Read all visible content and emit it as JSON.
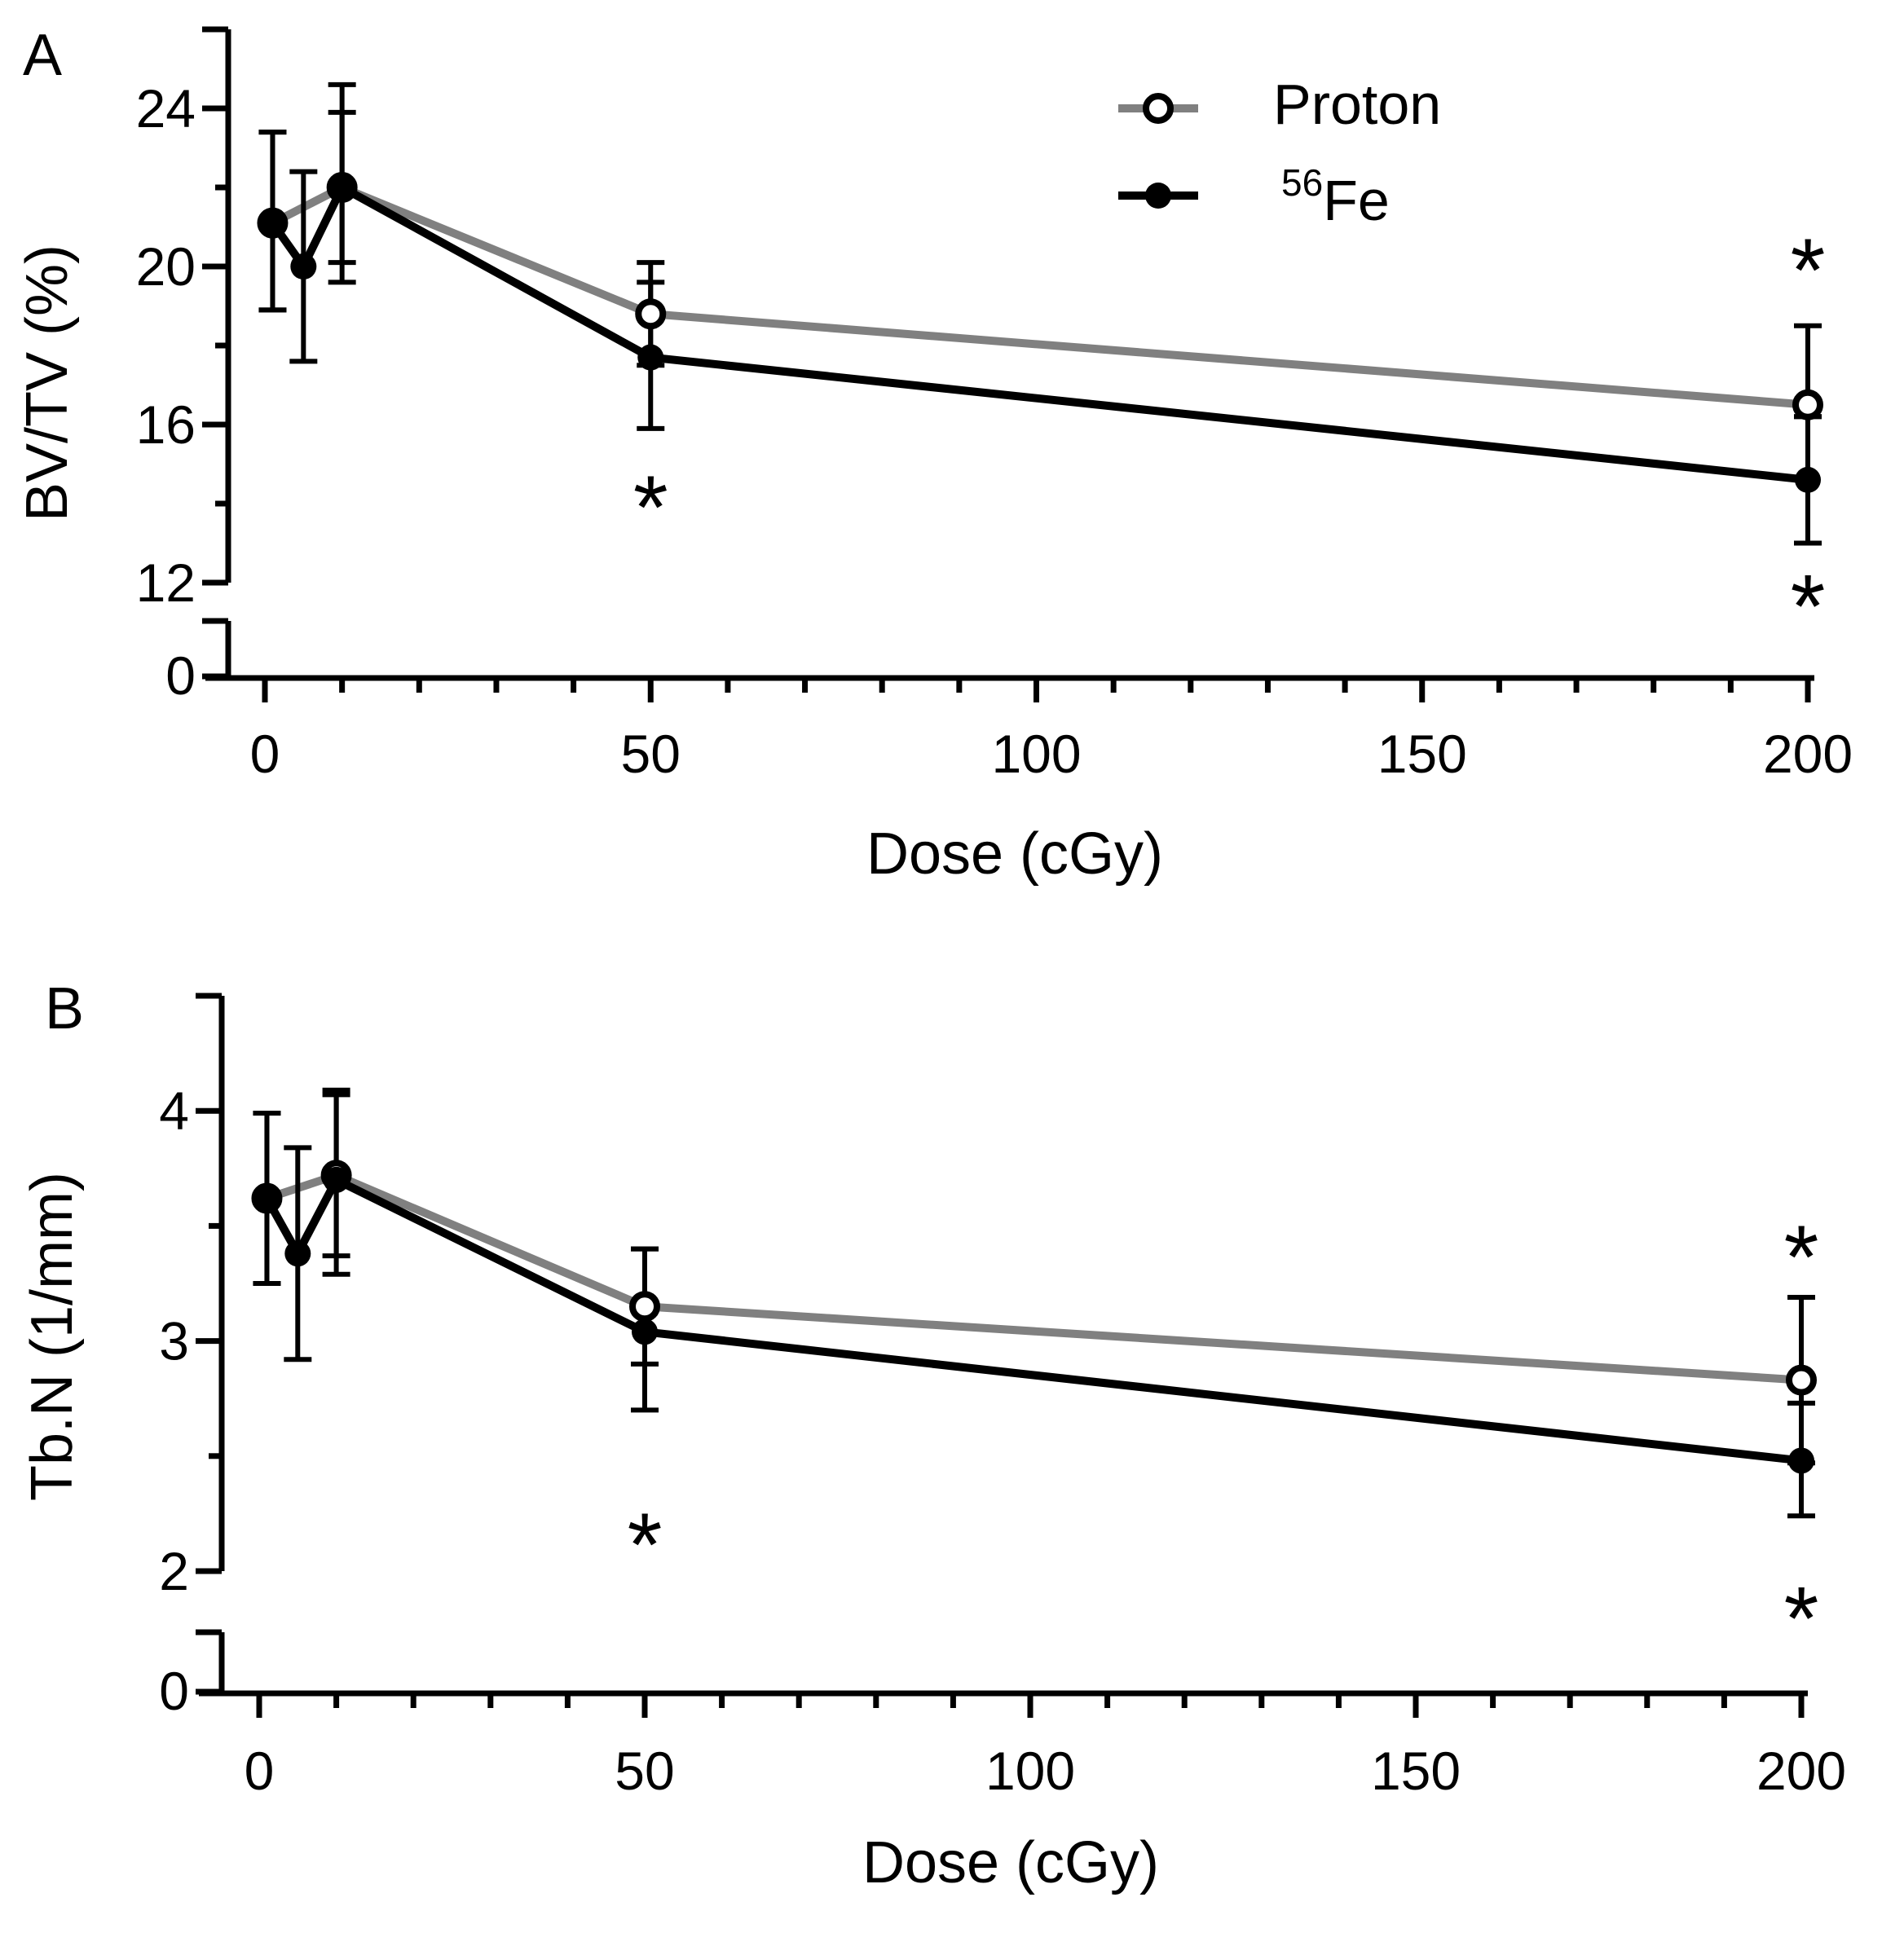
{
  "chart_data": [
    {
      "type": "line",
      "panel_label": "A",
      "xlabel": "Dose (cGy)",
      "ylabel": "BV/TV (%)",
      "xlim": [
        -5,
        200
      ],
      "ylim": [
        12,
        26
      ],
      "y_break": true,
      "y_below_break_tick": 0,
      "xticks": [
        0,
        50,
        100,
        150,
        200
      ],
      "yticks": [
        24,
        20,
        16,
        12
      ],
      "series": [
        {
          "name": "Proton",
          "color": "#808080",
          "marker": "open-circle",
          "x": [
            1,
            10,
            50,
            200
          ],
          "values": [
            21.1,
            22.0,
            18.8,
            16.5
          ],
          "err_upper": [
            23.4,
            24.6,
            20.1,
            18.5
          ],
          "err_lower": [
            18.9,
            19.6,
            17.5,
            16.2
          ]
        },
        {
          "name": "56Fe",
          "color": "#000000",
          "marker": "filled-circle",
          "x": [
            1,
            5,
            10,
            50,
            200
          ],
          "values": [
            21.1,
            20.0,
            22.0,
            17.7,
            14.6
          ],
          "err_upper": [
            23.4,
            22.4,
            23.9,
            19.6,
            16.2
          ],
          "err_lower": [
            18.9,
            17.6,
            20.1,
            15.9,
            13.0
          ]
        }
      ],
      "annotations": [
        {
          "text": "*",
          "x": 50,
          "y": 14.4
        },
        {
          "text": "*",
          "x": 200,
          "y": 20.4
        },
        {
          "text": "*",
          "x": 200,
          "y": 11.9
        }
      ],
      "legend": {
        "placement": "top-center",
        "entries": [
          {
            "label": "Proton"
          },
          {
            "label_super": "56",
            "label": "Fe"
          }
        ]
      }
    },
    {
      "type": "line",
      "panel_label": "B",
      "xlabel": "Dose (cGy)",
      "ylabel": "Tb.N (1/mm)",
      "xlim": [
        -5,
        200
      ],
      "ylim": [
        2,
        4.5
      ],
      "y_break": true,
      "y_below_break_tick": 0,
      "xticks": [
        0,
        50,
        100,
        150,
        200
      ],
      "yticks": [
        4,
        3,
        2
      ],
      "series": [
        {
          "name": "Proton",
          "color": "#808080",
          "marker": "open-circle",
          "x": [
            1,
            10,
            50,
            200
          ],
          "values": [
            3.62,
            3.72,
            3.15,
            2.83
          ],
          "err_upper": [
            3.99,
            4.07,
            3.4,
            3.19
          ],
          "err_lower": [
            3.25,
            3.37,
            2.9,
            2.47
          ]
        },
        {
          "name": "56Fe",
          "color": "#000000",
          "marker": "filled-circle",
          "x": [
            1,
            5,
            10,
            50,
            200
          ],
          "values": [
            3.62,
            3.38,
            3.7,
            3.04,
            2.48
          ],
          "err_upper": [
            3.99,
            3.84,
            4.09,
            3.4,
            2.73
          ],
          "err_lower": [
            3.25,
            2.92,
            3.29,
            2.7,
            2.24
          ]
        }
      ],
      "annotations": [
        {
          "text": "*",
          "x": 50,
          "y": 2.2
        },
        {
          "text": "*",
          "x": 200,
          "y": 3.45
        },
        {
          "text": "*",
          "x": 200,
          "y": 1.88
        }
      ]
    }
  ]
}
